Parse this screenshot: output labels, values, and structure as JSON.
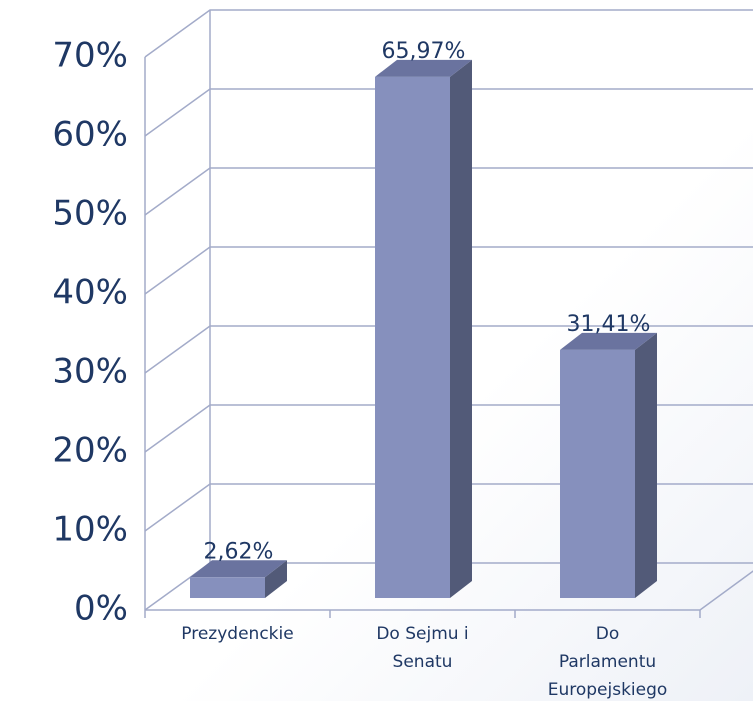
{
  "chart_data": {
    "type": "bar3d",
    "categories": [
      "Prezydenckie",
      "Do Sejmu i Senatu",
      "Do Parlamentu Europejskiego"
    ],
    "values": [
      2.62,
      65.97,
      31.41
    ],
    "value_labels": [
      "2,62%",
      "65,97%",
      "31,41%"
    ],
    "color": "#8690bd",
    "ylim": [
      0,
      70
    ],
    "yticks": [
      {
        "value": 0,
        "label": "0%"
      },
      {
        "value": 10,
        "label": "10%"
      },
      {
        "value": 20,
        "label": "20%"
      },
      {
        "value": 30,
        "label": "30%"
      },
      {
        "value": 40,
        "label": "40%"
      },
      {
        "value": 50,
        "label": "50%"
      },
      {
        "value": 60,
        "label": "60%"
      },
      {
        "value": 70,
        "label": "70%"
      }
    ],
    "grid": true
  }
}
